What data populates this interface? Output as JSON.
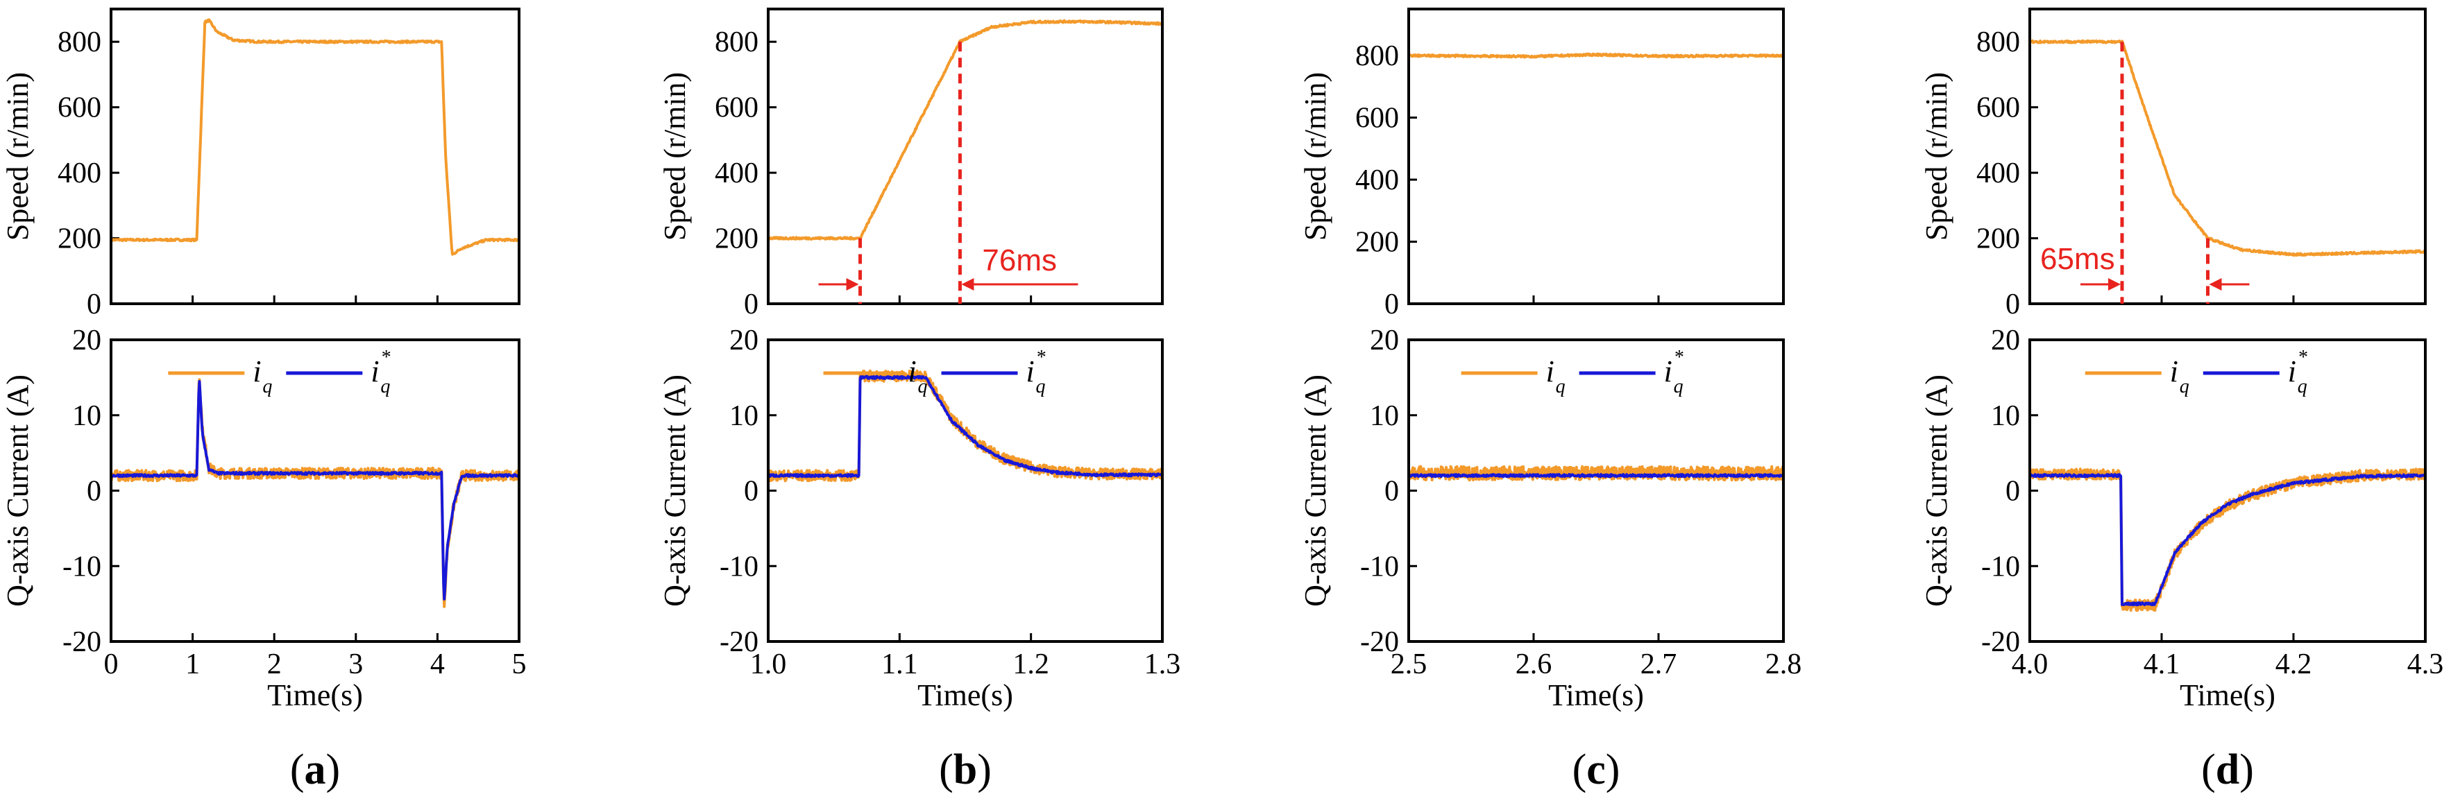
{
  "colors": {
    "iq": "#f39a2b",
    "iq_ref": "#1818d8",
    "speed": "#f39a2b",
    "annotation": "#e8231e",
    "frame": "#000000"
  },
  "chart_data": [
    {
      "panel": "(a)",
      "type": "line",
      "row": "speed",
      "ylabel": "Speed (r/min)",
      "xlabel": "",
      "xlim": [
        0,
        5
      ],
      "ylim": [
        0,
        900
      ],
      "yticks": [
        0,
        200,
        400,
        600,
        800
      ],
      "xticks": [],
      "series": [
        {
          "x": [
            0,
            1.05,
            1.15,
            1.2,
            1.3,
            1.5,
            1.8,
            2.5,
            3.5,
            4.05,
            4.1,
            4.18,
            4.3,
            4.6,
            5.0
          ],
          "y": [
            195,
            195,
            860,
            865,
            830,
            805,
            800,
            800,
            800,
            800,
            450,
            150,
            170,
            195,
            195
          ]
        }
      ]
    },
    {
      "panel": "(a)",
      "type": "line",
      "row": "current",
      "ylabel": "Q-axis Current (A)",
      "xlabel": "Time(s)",
      "xlim": [
        0,
        5
      ],
      "ylim": [
        -20,
        20
      ],
      "yticks": [
        -20,
        -10,
        0,
        10,
        20
      ],
      "xticks": [
        0,
        1,
        2,
        3,
        4,
        5
      ],
      "legend": {
        "items": [
          {
            "label": "i",
            "sub": "q",
            "sup": ""
          },
          {
            "label": "i",
            "sub": "q",
            "sup": "*"
          }
        ]
      },
      "series": [
        {
          "name": "iq",
          "x": [
            0,
            1.05,
            1.08,
            1.12,
            1.2,
            1.3,
            4.05,
            4.08,
            4.12,
            4.2,
            4.3,
            5.0
          ],
          "y": [
            2.0,
            2.0,
            15.5,
            8,
            3,
            2.3,
            2.3,
            -15.5,
            -8,
            -2,
            2.0,
            2.0
          ]
        },
        {
          "name": "iq*",
          "x": [
            0,
            1.05,
            1.08,
            1.12,
            1.2,
            1.3,
            4.05,
            4.08,
            4.12,
            4.2,
            4.3,
            5.0
          ],
          "y": [
            2.0,
            2.0,
            15,
            7.5,
            2.8,
            2.3,
            2.3,
            -15,
            -7.5,
            -1.8,
            2.0,
            2.0
          ]
        }
      ]
    },
    {
      "panel": "(b)",
      "type": "line",
      "row": "speed",
      "ylabel": "Speed (r/min)",
      "xlabel": "",
      "xlim": [
        1.0,
        1.3
      ],
      "ylim": [
        0,
        900
      ],
      "yticks": [
        0,
        200,
        400,
        600,
        800
      ],
      "xticks": [],
      "annotation": {
        "text": "76ms",
        "x_start": 1.07,
        "x_end": 1.146
      },
      "series": [
        {
          "x": [
            1.0,
            1.07,
            1.146,
            1.17,
            1.2,
            1.23,
            1.26,
            1.3
          ],
          "y": [
            200,
            200,
            800,
            845,
            860,
            862,
            860,
            855
          ]
        }
      ]
    },
    {
      "panel": "(b)",
      "type": "line",
      "row": "current",
      "ylabel": "Q-axis Current (A)",
      "xlabel": "Time(s)",
      "xlim": [
        1.0,
        1.3
      ],
      "ylim": [
        -20,
        20
      ],
      "yticks": [
        -20,
        -10,
        0,
        10,
        20
      ],
      "xticks": [
        1.0,
        1.1,
        1.2,
        1.3
      ],
      "legend": {
        "items": [
          {
            "label": "i",
            "sub": "q",
            "sup": ""
          },
          {
            "label": "i",
            "sub": "q",
            "sup": "*"
          }
        ]
      },
      "series": [
        {
          "name": "iq",
          "x": [
            1.0,
            1.069,
            1.07,
            1.12,
            1.14,
            1.16,
            1.18,
            1.2,
            1.22,
            1.25,
            1.3
          ],
          "y": [
            2.0,
            2.0,
            15.2,
            15.2,
            9.5,
            6.2,
            4.2,
            3.1,
            2.5,
            2.2,
            2.2
          ]
        },
        {
          "name": "iq*",
          "x": [
            1.0,
            1.069,
            1.07,
            1.12,
            1.14,
            1.16,
            1.18,
            1.2,
            1.22,
            1.25,
            1.3
          ],
          "y": [
            2.0,
            2.0,
            15,
            15,
            9.2,
            6.0,
            4.0,
            3.0,
            2.4,
            2.1,
            2.1
          ]
        }
      ]
    },
    {
      "panel": "(c)",
      "type": "line",
      "row": "speed",
      "ylabel": "Speed (r/min)",
      "xlabel": "",
      "xlim": [
        2.5,
        2.8
      ],
      "ylim": [
        0,
        950
      ],
      "yticks": [
        0,
        200,
        400,
        600,
        800
      ],
      "xticks": [],
      "series": [
        {
          "x": [
            2.5,
            2.6,
            2.65,
            2.7,
            2.8
          ],
          "y": [
            800,
            797,
            803,
            798,
            800
          ]
        }
      ]
    },
    {
      "panel": "(c)",
      "type": "line",
      "row": "current",
      "ylabel": "Q-axis Current (A)",
      "xlabel": "Time(s)",
      "xlim": [
        2.5,
        2.8
      ],
      "ylim": [
        -20,
        20
      ],
      "yticks": [
        -20,
        -10,
        0,
        10,
        20
      ],
      "xticks": [
        2.5,
        2.6,
        2.7,
        2.8
      ],
      "legend": {
        "items": [
          {
            "label": "i",
            "sub": "q",
            "sup": ""
          },
          {
            "label": "i",
            "sub": "q",
            "sup": "*"
          }
        ]
      },
      "series": [
        {
          "name": "iq",
          "x": [
            2.5,
            2.8
          ],
          "y": [
            2.3,
            2.3
          ]
        },
        {
          "name": "iq*",
          "x": [
            2.5,
            2.8
          ],
          "y": [
            2.0,
            2.0
          ]
        }
      ]
    },
    {
      "panel": "(d)",
      "type": "line",
      "row": "speed",
      "ylabel": "Speed (r/min)",
      "xlabel": "",
      "xlim": [
        4.0,
        4.3
      ],
      "ylim": [
        0,
        900
      ],
      "yticks": [
        0,
        200,
        400,
        600,
        800
      ],
      "xticks": [],
      "annotation": {
        "text": "65ms",
        "x_start": 4.07,
        "x_end": 4.135
      },
      "series": [
        {
          "x": [
            4.0,
            4.07,
            4.09,
            4.11,
            4.135,
            4.16,
            4.2,
            4.25,
            4.3
          ],
          "y": [
            800,
            800,
            560,
            330,
            200,
            165,
            150,
            155,
            160
          ]
        }
      ]
    },
    {
      "panel": "(d)",
      "type": "line",
      "row": "current",
      "ylabel": "Q-axis Current (A)",
      "xlabel": "Time(s)",
      "xlim": [
        4.0,
        4.3
      ],
      "ylim": [
        -20,
        20
      ],
      "yticks": [
        -20,
        -10,
        0,
        10,
        20
      ],
      "xticks": [
        4.0,
        4.1,
        4.2,
        4.3
      ],
      "legend": {
        "items": [
          {
            "label": "i",
            "sub": "q",
            "sup": ""
          },
          {
            "label": "i",
            "sub": "q",
            "sup": "*"
          }
        ]
      },
      "series": [
        {
          "name": "iq",
          "x": [
            4.0,
            4.069,
            4.07,
            4.095,
            4.11,
            4.13,
            4.15,
            4.17,
            4.2,
            4.25,
            4.3
          ],
          "y": [
            2.2,
            2.2,
            -15.2,
            -15.2,
            -8.5,
            -4.5,
            -2.0,
            -0.5,
            1.0,
            2.0,
            2.2
          ]
        },
        {
          "name": "iq*",
          "x": [
            4.0,
            4.069,
            4.07,
            4.095,
            4.11,
            4.13,
            4.15,
            4.17,
            4.2,
            4.25,
            4.3
          ],
          "y": [
            2.0,
            2.0,
            -15,
            -15,
            -8.2,
            -4.3,
            -1.8,
            -0.4,
            1.0,
            1.9,
            2.0
          ]
        }
      ]
    }
  ],
  "panel_labels": [
    "(a)",
    "(b)",
    "(c)",
    "(d)"
  ]
}
